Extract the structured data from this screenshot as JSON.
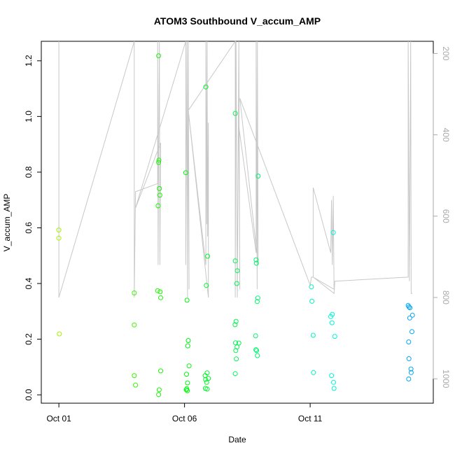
{
  "chart_data": {
    "type": "scatter",
    "title": "ATOM3 Southbound V_accum_AMP",
    "xlabel": "Date",
    "ylabel": "V_accum_AMP",
    "x_unit": "days",
    "x_ticks": [
      {
        "value": 1,
        "label": "Oct 01"
      },
      {
        "value": 6,
        "label": "Oct 06"
      },
      {
        "value": 11,
        "label": "Oct 11"
      }
    ],
    "xlim": [
      0.3,
      15.9
    ],
    "ylim": [
      -0.03,
      1.27
    ],
    "y_ticks": [
      0.0,
      0.2,
      0.4,
      0.6,
      0.8,
      1.0,
      1.2
    ],
    "y_tick_labels": [
      "0.0",
      "0.2",
      "0.4",
      "0.6",
      "0.8",
      "1.0",
      "1.2"
    ],
    "right_axis": {
      "ylim": [
        1060,
        170
      ],
      "ticks": [
        200,
        400,
        600,
        800,
        1000
      ],
      "tick_labels": [
        "200",
        "400",
        "600",
        "800",
        "1000"
      ],
      "color": "#aaaaaa"
    },
    "grid": false,
    "color_scale": "rainbow by time (yellow-green to blue)",
    "series": [
      {
        "values": [
          {
            "x": 1.0,
            "y": 0.592
          },
          {
            "x": 1.0,
            "y": 0.563
          },
          {
            "x": 1.02,
            "y": 0.219
          },
          {
            "x": 4.0,
            "y": 0.366
          },
          {
            "x": 4.0,
            "y": 0.251
          },
          {
            "x": 4.0,
            "y": 0.069
          },
          {
            "x": 4.05,
            "y": 0.035
          },
          {
            "x": 4.97,
            "y": 1.218
          },
          {
            "x": 4.98,
            "y": 0.843
          },
          {
            "x": 4.97,
            "y": 0.835
          },
          {
            "x": 5.0,
            "y": 0.741
          },
          {
            "x": 5.02,
            "y": 0.717
          },
          {
            "x": 4.95,
            "y": 0.679
          },
          {
            "x": 4.93,
            "y": 0.374
          },
          {
            "x": 5.03,
            "y": 0.37
          },
          {
            "x": 5.05,
            "y": 0.349
          },
          {
            "x": 5.05,
            "y": 0.086
          },
          {
            "x": 4.99,
            "y": 0.018
          },
          {
            "x": 4.97,
            "y": 0.001
          },
          {
            "x": 6.05,
            "y": 0.798
          },
          {
            "x": 6.1,
            "y": 0.34
          },
          {
            "x": 6.15,
            "y": 0.195
          },
          {
            "x": 6.13,
            "y": 0.176
          },
          {
            "x": 6.18,
            "y": 0.104
          },
          {
            "x": 6.08,
            "y": 0.074
          },
          {
            "x": 6.12,
            "y": 0.043
          },
          {
            "x": 6.09,
            "y": 0.022
          },
          {
            "x": 6.07,
            "y": 0.018
          },
          {
            "x": 6.11,
            "y": 0.015
          },
          {
            "x": 6.85,
            "y": 1.106
          },
          {
            "x": 6.92,
            "y": 0.498
          },
          {
            "x": 6.87,
            "y": 0.393
          },
          {
            "x": 6.9,
            "y": 0.079
          },
          {
            "x": 6.82,
            "y": 0.069
          },
          {
            "x": 6.95,
            "y": 0.059
          },
          {
            "x": 6.84,
            "y": 0.055
          },
          {
            "x": 6.88,
            "y": 0.045
          },
          {
            "x": 6.83,
            "y": 0.023
          },
          {
            "x": 6.9,
            "y": 0.021
          },
          {
            "x": 8.02,
            "y": 1.011
          },
          {
            "x": 8.02,
            "y": 0.481
          },
          {
            "x": 8.1,
            "y": 0.446
          },
          {
            "x": 8.08,
            "y": 0.4
          },
          {
            "x": 8.05,
            "y": 0.264
          },
          {
            "x": 8.01,
            "y": 0.252
          },
          {
            "x": 8.16,
            "y": 0.186
          },
          {
            "x": 8.03,
            "y": 0.187
          },
          {
            "x": 8.09,
            "y": 0.172
          },
          {
            "x": 8.04,
            "y": 0.159
          },
          {
            "x": 8.06,
            "y": 0.129
          },
          {
            "x": 8.02,
            "y": 0.076
          },
          {
            "x": 8.93,
            "y": 0.786
          },
          {
            "x": 8.85,
            "y": 0.485
          },
          {
            "x": 8.86,
            "y": 0.473
          },
          {
            "x": 8.92,
            "y": 0.348
          },
          {
            "x": 8.89,
            "y": 0.335
          },
          {
            "x": 8.83,
            "y": 0.212
          },
          {
            "x": 8.84,
            "y": 0.162
          },
          {
            "x": 8.87,
            "y": 0.159
          },
          {
            "x": 8.9,
            "y": 0.141
          },
          {
            "x": 11.05,
            "y": 0.388
          },
          {
            "x": 11.07,
            "y": 0.336
          },
          {
            "x": 11.12,
            "y": 0.214
          },
          {
            "x": 11.13,
            "y": 0.08
          },
          {
            "x": 11.92,
            "y": 0.583
          },
          {
            "x": 11.88,
            "y": 0.289
          },
          {
            "x": 11.82,
            "y": 0.281
          },
          {
            "x": 11.87,
            "y": 0.259
          },
          {
            "x": 11.98,
            "y": 0.21
          },
          {
            "x": 11.85,
            "y": 0.069
          },
          {
            "x": 11.93,
            "y": 0.045
          },
          {
            "x": 11.95,
            "y": 0.023
          },
          {
            "x": 14.9,
            "y": 0.321
          },
          {
            "x": 14.93,
            "y": 0.316
          },
          {
            "x": 14.97,
            "y": 0.313
          },
          {
            "x": 15.07,
            "y": 0.286
          },
          {
            "x": 14.96,
            "y": 0.276
          },
          {
            "x": 15.05,
            "y": 0.227
          },
          {
            "x": 14.92,
            "y": 0.19
          },
          {
            "x": 14.93,
            "y": 0.13
          },
          {
            "x": 15.01,
            "y": 0.093
          },
          {
            "x": 15.02,
            "y": 0.08
          },
          {
            "x": 14.92,
            "y": 0.057
          }
        ]
      }
    ],
    "depth_trace": {
      "color": "#c8c8c8",
      "points": [
        [
          1.0,
          170
        ],
        [
          1.0,
          800
        ],
        [
          4.0,
          170
        ],
        [
          4.0,
          800
        ],
        [
          4.0,
          580
        ],
        [
          4.0,
          800
        ],
        [
          4.05,
          540
        ],
        [
          4.93,
          520
        ],
        [
          4.93,
          170
        ],
        [
          4.95,
          720
        ],
        [
          4.97,
          420
        ],
        [
          5.0,
          170
        ],
        [
          5.02,
          720
        ],
        [
          5.05,
          420
        ],
        [
          4.05,
          580
        ],
        [
          6.05,
          170
        ],
        [
          6.05,
          720
        ],
        [
          6.1,
          170
        ],
        [
          6.12,
          800
        ],
        [
          6.15,
          170
        ],
        [
          6.18,
          780
        ],
        [
          6.15,
          340
        ],
        [
          6.85,
          720
        ],
        [
          6.85,
          170
        ],
        [
          6.88,
          620
        ],
        [
          6.9,
          170
        ],
        [
          6.92,
          650
        ],
        [
          6.95,
          370
        ],
        [
          6.95,
          800
        ],
        [
          6.15,
          340
        ],
        [
          8.02,
          170
        ],
        [
          8.02,
          800
        ],
        [
          8.05,
          170
        ],
        [
          8.1,
          800
        ],
        [
          8.16,
          170
        ],
        [
          8.2,
          780
        ],
        [
          8.16,
          380
        ],
        [
          8.85,
          690
        ],
        [
          8.85,
          170
        ],
        [
          8.89,
          780
        ],
        [
          8.9,
          170
        ],
        [
          8.93,
          720
        ],
        [
          8.2,
          310
        ],
        [
          11.0,
          770
        ],
        [
          11.05,
          750
        ],
        [
          11.12,
          750
        ],
        [
          11.12,
          530
        ],
        [
          11.82,
          690
        ],
        [
          11.85,
          560
        ],
        [
          11.88,
          720
        ],
        [
          11.92,
          550
        ],
        [
          11.95,
          780
        ],
        [
          11.12,
          750
        ],
        [
          11.95,
          790
        ],
        [
          11.98,
          760
        ],
        [
          14.9,
          750
        ],
        [
          14.9,
          170
        ],
        [
          14.95,
          760
        ],
        [
          15.0,
          170
        ],
        [
          15.02,
          790
        ],
        [
          15.07,
          790
        ]
      ]
    }
  }
}
